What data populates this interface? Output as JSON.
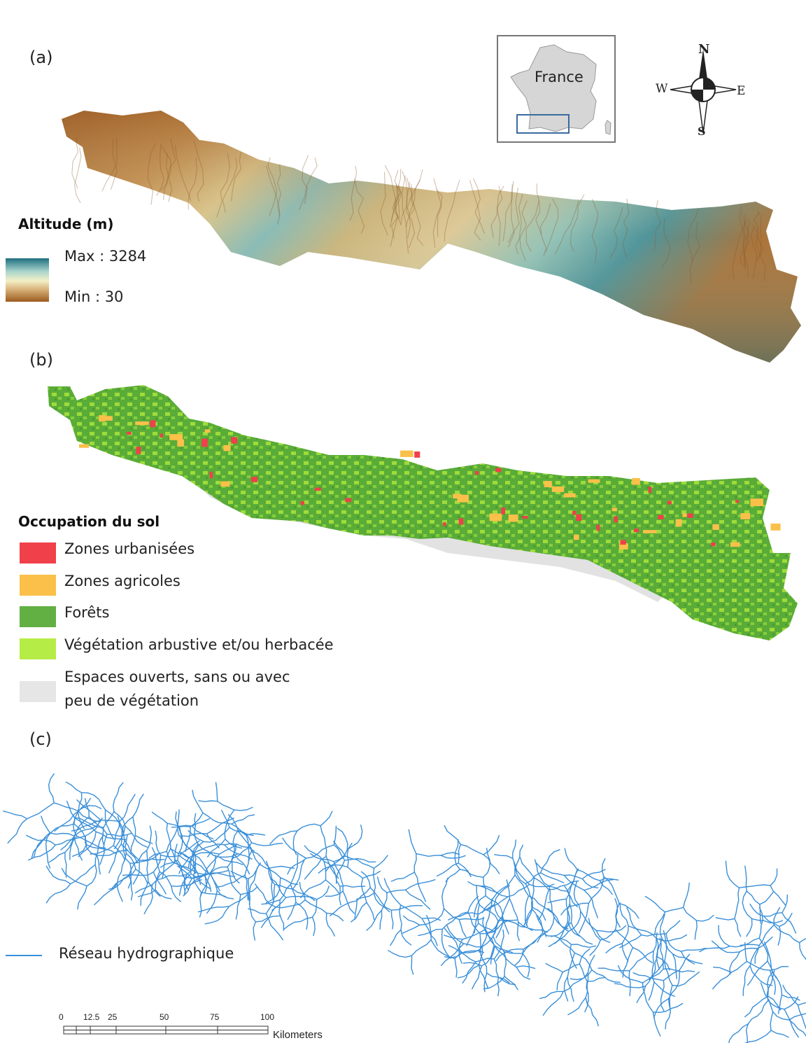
{
  "panels": {
    "a": {
      "label": "(a)"
    },
    "b": {
      "label": "(b)"
    },
    "c": {
      "label": "(c)"
    }
  },
  "inset": {
    "label": "France"
  },
  "compass": {
    "north": "N",
    "south": "S",
    "east": "E",
    "west": "W"
  },
  "altitude_legend": {
    "title": "Altitude (m)",
    "max_label": "Max : 3284",
    "min_label": "Min : 30",
    "colors": {
      "high": "#1e6e80",
      "mid": "#f4efc5",
      "low": "#9c5a1e"
    }
  },
  "landcover_legend": {
    "title": "Occupation  du sol",
    "items": [
      {
        "label": "Zones urbanisées",
        "color": "#f0404a"
      },
      {
        "label": "Zones agricoles",
        "color": "#fbc04a"
      },
      {
        "label": "Forêts",
        "color": "#62b043"
      },
      {
        "label": "Végétation arbustive et/ou herbacée",
        "color": "#b6ec46"
      },
      {
        "label": "Espaces ouverts, sans ou avec",
        "label2": "peu de végétation",
        "color": "#e6e6e6"
      }
    ]
  },
  "hydro_legend": {
    "label": "Réseau hydrographique",
    "color": "#3a8fd8"
  },
  "scale_bar": {
    "ticks": [
      "0",
      "12.5",
      "25",
      "50",
      "75",
      "100"
    ],
    "unit": "Kilometers"
  }
}
